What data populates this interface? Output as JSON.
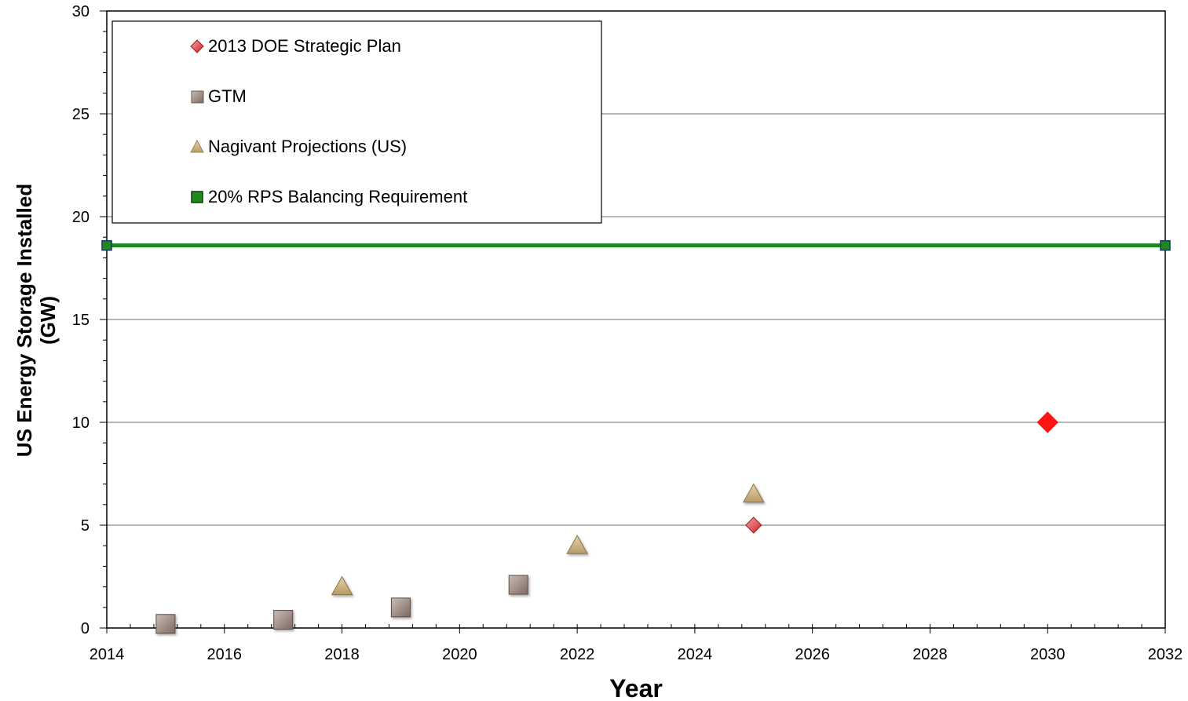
{
  "chart_data": {
    "type": "scatter",
    "xlabel": "Year",
    "ylabel": "US Energy Storage Installed",
    "ylabel_unit": "(GW)",
    "xlim": [
      2014,
      2032
    ],
    "ylim": [
      0,
      30
    ],
    "x_ticks": [
      "2014",
      "2016",
      "2018",
      "2020",
      "2022",
      "2024",
      "2026",
      "2028",
      "2030",
      "2032"
    ],
    "y_ticks": [
      "0",
      "5",
      "10",
      "15",
      "20",
      "25",
      "30"
    ],
    "grid": "horizontal",
    "legend_position": "top-left",
    "series": [
      {
        "name": "2013 DOE Strategic Plan",
        "marker": "diamond",
        "color": "#e8262b",
        "points": [
          {
            "x": 2025,
            "y": 5
          },
          {
            "x": 2030,
            "y": 10
          }
        ]
      },
      {
        "name": "GTM",
        "marker": "square",
        "color": "#a39188",
        "points": [
          {
            "x": 2015,
            "y": 0.2
          },
          {
            "x": 2017,
            "y": 0.4
          },
          {
            "x": 2019,
            "y": 1.0
          },
          {
            "x": 2021,
            "y": 2.1
          }
        ]
      },
      {
        "name": "Nagivant Projections (US)",
        "marker": "triangle",
        "color": "#c9b07e",
        "points": [
          {
            "x": 2018,
            "y": 2.0
          },
          {
            "x": 2022,
            "y": 4.0
          },
          {
            "x": 2025,
            "y": 6.5
          }
        ]
      },
      {
        "name": "20% RPS Balancing Requirement",
        "marker": "square-line",
        "color": "#1e8a1e",
        "points": [
          {
            "x": 2014,
            "y": 18.6
          },
          {
            "x": 2032,
            "y": 18.6
          }
        ]
      }
    ]
  }
}
